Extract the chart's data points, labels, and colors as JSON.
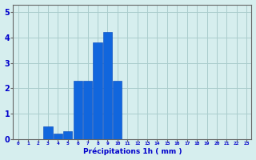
{
  "x_values": [
    0,
    1,
    2,
    3,
    4,
    5,
    6,
    7,
    8,
    9,
    10,
    11,
    12,
    13,
    14,
    15,
    16,
    17,
    18,
    19,
    20,
    21,
    22,
    23
  ],
  "bar_heights": [
    0,
    0,
    0,
    0.5,
    0.2,
    0.3,
    2.3,
    2.3,
    3.8,
    4.2,
    2.3,
    0,
    0,
    0,
    0,
    0,
    0,
    0,
    0,
    0,
    0,
    0,
    0,
    0
  ],
  "bar_color": "#1166dd",
  "bar_edge_color": "#0044bb",
  "background_color": "#d6eeee",
  "grid_color": "#aacccc",
  "xlabel": "Précipitations 1h ( mm )",
  "xlabel_color": "#0000cc",
  "tick_color": "#0000cc",
  "axis_color": "#666666",
  "ylim": [
    0,
    5.3
  ],
  "yticks": [
    0,
    1,
    2,
    3,
    4,
    5
  ],
  "xlim": [
    -0.5,
    23.5
  ],
  "bar_width": 0.9
}
